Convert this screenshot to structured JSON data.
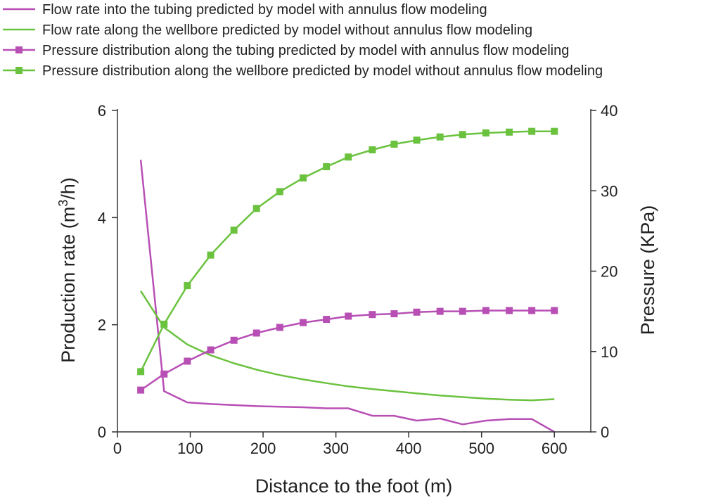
{
  "chart_data": {
    "type": "line",
    "xlabel": "Distance to the foot (m)",
    "ylabel_left": {
      "pre": "Production rate (m",
      "sup": "3",
      "post": "/h)"
    },
    "ylabel_right": "Pressure (KPa)",
    "xlim": [
      0,
      650
    ],
    "ylim_left": [
      0,
      6
    ],
    "ylim_right": [
      0,
      40
    ],
    "x_ticks": [
      0,
      100,
      200,
      300,
      400,
      500,
      600
    ],
    "y_ticks_left": [
      0,
      2,
      4,
      6
    ],
    "y_ticks_right": [
      0,
      10,
      20,
      30,
      40
    ],
    "legend_position": "top-left",
    "series": [
      {
        "name": "Flow rate into the tubing predicted by model with annulus flow modeling",
        "axis": "left",
        "color": "#b84fb5",
        "marker": "none",
        "x": [
          32,
          64,
          96,
          128,
          160,
          191,
          223,
          255,
          287,
          317,
          350,
          380,
          411,
          443,
          474,
          506,
          538,
          569,
          600
        ],
        "values": [
          5.08,
          0.76,
          0.55,
          0.52,
          0.5,
          0.48,
          0.47,
          0.46,
          0.44,
          0.44,
          0.3,
          0.3,
          0.21,
          0.25,
          0.14,
          0.21,
          0.24,
          0.24,
          0.0
        ]
      },
      {
        "name": "Flow rate along the wellbore predicted by model without annulus flow modeling",
        "axis": "left",
        "color": "#6ac23e",
        "marker": "none",
        "x": [
          32,
          64,
          96,
          128,
          160,
          191,
          223,
          255,
          287,
          317,
          350,
          380,
          411,
          443,
          474,
          506,
          538,
          569,
          600
        ],
        "values": [
          2.63,
          1.95,
          1.63,
          1.43,
          1.28,
          1.16,
          1.06,
          0.98,
          0.91,
          0.85,
          0.8,
          0.76,
          0.72,
          0.68,
          0.65,
          0.62,
          0.6,
          0.59,
          0.61
        ]
      },
      {
        "name": "Pressure distribution along the tubing predicted by model with annulus flow modeling",
        "axis": "right",
        "color": "#b84fb5",
        "marker": "square",
        "x": [
          32,
          64,
          96,
          128,
          160,
          191,
          223,
          255,
          287,
          317,
          350,
          380,
          411,
          443,
          474,
          506,
          538,
          569,
          600
        ],
        "values": [
          5.2,
          7.2,
          8.8,
          10.2,
          11.4,
          12.3,
          13.0,
          13.6,
          14.0,
          14.4,
          14.6,
          14.7,
          14.9,
          15.0,
          15.0,
          15.1,
          15.1,
          15.1,
          15.1
        ]
      },
      {
        "name": "Pressure distribution along the wellbore predicted by model without annulus flow modeling",
        "axis": "right",
        "color": "#6ac23e",
        "marker": "square",
        "x": [
          32,
          64,
          96,
          128,
          160,
          191,
          223,
          255,
          287,
          317,
          350,
          380,
          411,
          443,
          474,
          506,
          538,
          569,
          600
        ],
        "values": [
          7.5,
          13.4,
          18.2,
          22.0,
          25.1,
          27.8,
          29.9,
          31.6,
          33.0,
          34.2,
          35.1,
          35.8,
          36.3,
          36.7,
          37.0,
          37.2,
          37.3,
          37.4,
          37.4
        ]
      }
    ]
  }
}
